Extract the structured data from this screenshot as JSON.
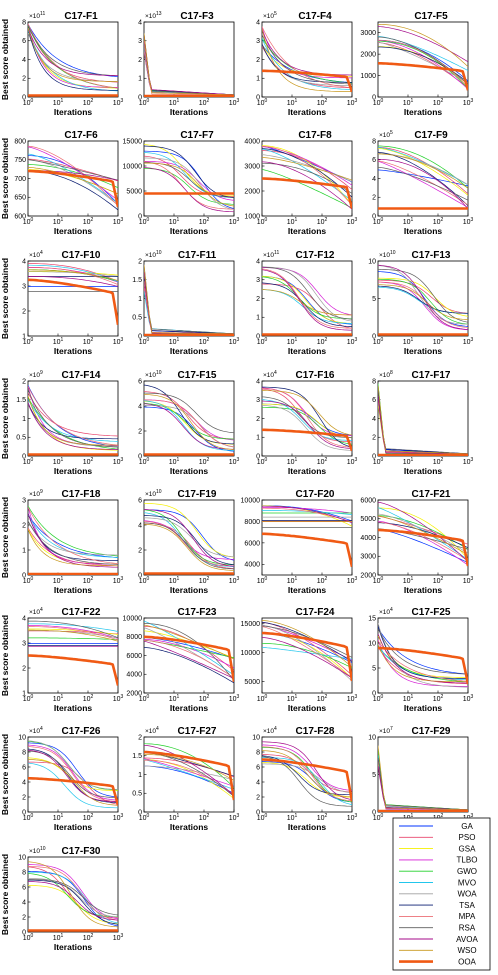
{
  "legend": {
    "entries": [
      {
        "name": "GA",
        "color": "#0033ff"
      },
      {
        "name": "PSO",
        "color": "#e8466e"
      },
      {
        "name": "GSA",
        "color": "#f4f000"
      },
      {
        "name": "TLBO",
        "color": "#d61ed6"
      },
      {
        "name": "GWO",
        "color": "#22d02a"
      },
      {
        "name": "MVO",
        "color": "#22c6ec"
      },
      {
        "name": "WOA",
        "color": "#a0a0a0"
      },
      {
        "name": "TSA",
        "color": "#0a1c70"
      },
      {
        "name": "MPA",
        "color": "#ec6e74"
      },
      {
        "name": "RSA",
        "color": "#5e5e5e"
      },
      {
        "name": "AVOA",
        "color": "#a40a8a"
      },
      {
        "name": "WSO",
        "color": "#c8981e"
      },
      {
        "name": "OOA",
        "color": "#f05a14"
      }
    ]
  },
  "chart_data": [
    {
      "type": "line",
      "title": "C17-F1",
      "xlabel": "Iterations",
      "ylabel": "Best score obtained",
      "xscale": "log",
      "xlim": [
        1,
        1000
      ],
      "ylim": [
        0,
        8
      ],
      "yticks": [
        0,
        2,
        4,
        6,
        8
      ],
      "y_multiplier": "×10",
      "y_exponent": "11",
      "shape": "fast",
      "spread": 0.35,
      "ooa_level": 0.02
    },
    {
      "type": "line",
      "title": "C17-F3",
      "xlabel": "Iterations",
      "ylabel": "",
      "xscale": "log",
      "xlim": [
        1,
        1000
      ],
      "ylim": [
        0,
        4
      ],
      "yticks": [
        0,
        1,
        2,
        3,
        4
      ],
      "y_multiplier": "×10",
      "y_exponent": "13",
      "shape": "spike",
      "spread": 0.9,
      "ooa_level": 0.0
    },
    {
      "type": "line",
      "title": "C17-F4",
      "xlabel": "Iterations",
      "ylabel": "",
      "xscale": "log",
      "xlim": [
        1,
        1000
      ],
      "ylim": [
        0,
        4
      ],
      "yticks": [
        0,
        1,
        2,
        3,
        4
      ],
      "y_multiplier": "×10",
      "y_exponent": "5",
      "shape": "fast",
      "spread": 0.85,
      "ooa_level": 0.35
    },
    {
      "type": "line",
      "title": "C17-F5",
      "xlabel": "Iterations",
      "ylabel": "",
      "xscale": "log",
      "xlim": [
        1,
        1000
      ],
      "ylim": [
        0,
        3500
      ],
      "yticks": [
        0,
        1000,
        2000,
        3000
      ],
      "y_multiplier": "",
      "y_exponent": "",
      "shape": "slow",
      "spread": 0.85,
      "ooa_level": 0.45
    },
    {
      "type": "line",
      "title": "C17-F6",
      "xlabel": "Iterations",
      "ylabel": "Best score obtained",
      "xscale": "log",
      "xlim": [
        1,
        1000
      ],
      "ylim": [
        600,
        800
      ],
      "yticks": [
        600,
        650,
        700,
        750,
        800
      ],
      "y_multiplier": "",
      "y_exponent": "",
      "shape": "slow",
      "spread": 0.9,
      "ooa_level": 0.6
    },
    {
      "type": "line",
      "title": "C17-F7",
      "xlabel": "Iterations",
      "ylabel": "",
      "xscale": "log",
      "xlim": [
        1,
        1000
      ],
      "ylim": [
        0,
        15000
      ],
      "yticks": [
        0,
        5000,
        10000,
        15000
      ],
      "y_multiplier": "",
      "y_exponent": "",
      "shape": "med",
      "spread": 0.9,
      "ooa_level": 0.3
    },
    {
      "type": "line",
      "title": "C17-F8",
      "xlabel": "Iterations",
      "ylabel": "",
      "xscale": "log",
      "xlim": [
        1,
        1000
      ],
      "ylim": [
        1000,
        4000
      ],
      "yticks": [
        1000,
        2000,
        3000,
        4000
      ],
      "y_multiplier": "",
      "y_exponent": "",
      "shape": "slow",
      "spread": 0.85,
      "ooa_level": 0.5
    },
    {
      "type": "line",
      "title": "C17-F9",
      "xlabel": "Iterations",
      "ylabel": "",
      "xscale": "log",
      "xlim": [
        1,
        1000
      ],
      "ylim": [
        0,
        8
      ],
      "yticks": [
        0,
        2,
        4,
        6,
        8
      ],
      "y_multiplier": "×10",
      "y_exponent": "5",
      "shape": "slow",
      "spread": 0.9,
      "ooa_level": 0.1
    },
    {
      "type": "line",
      "title": "C17-F10",
      "xlabel": "Iterations",
      "ylabel": "Best score obtained",
      "xscale": "log",
      "xlim": [
        1,
        1000
      ],
      "ylim": [
        1,
        4
      ],
      "yticks": [
        1,
        2,
        3,
        4
      ],
      "y_multiplier": "×10",
      "y_exponent": "4",
      "shape": "flat",
      "spread": 0.95,
      "ooa_level": 0.75
    },
    {
      "type": "line",
      "title": "C17-F11",
      "xlabel": "Iterations",
      "ylabel": "",
      "xscale": "log",
      "xlim": [
        1,
        1000
      ],
      "ylim": [
        0,
        2
      ],
      "yticks": [
        0,
        0.5,
        1,
        1.5,
        2
      ],
      "y_multiplier": "×10",
      "y_exponent": "10",
      "shape": "spike",
      "spread": 0.9,
      "ooa_level": 0.0
    },
    {
      "type": "line",
      "title": "C17-F12",
      "xlabel": "Iterations",
      "ylabel": "",
      "xscale": "log",
      "xlim": [
        1,
        1000
      ],
      "ylim": [
        0,
        4
      ],
      "yticks": [
        0,
        1,
        2,
        3,
        4
      ],
      "y_multiplier": "×10",
      "y_exponent": "11",
      "shape": "med",
      "spread": 0.9,
      "ooa_level": 0.02
    },
    {
      "type": "line",
      "title": "C17-F13",
      "xlabel": "Iterations",
      "ylabel": "",
      "xscale": "log",
      "xlim": [
        1,
        1000
      ],
      "ylim": [
        0,
        10
      ],
      "yticks": [
        0,
        5,
        10
      ],
      "y_multiplier": "×10",
      "y_exponent": "10",
      "shape": "med",
      "spread": 0.9,
      "ooa_level": 0.02
    },
    {
      "type": "line",
      "title": "C17-F14",
      "xlabel": "Iterations",
      "ylabel": "Best score obtained",
      "xscale": "log",
      "xlim": [
        1,
        1000
      ],
      "ylim": [
        0,
        2
      ],
      "yticks": [
        0,
        0.5,
        1,
        1.5,
        2
      ],
      "y_multiplier": "×10",
      "y_exponent": "9",
      "shape": "fast",
      "spread": 0.7,
      "ooa_level": 0.02
    },
    {
      "type": "line",
      "title": "C17-F15",
      "xlabel": "Iterations",
      "ylabel": "",
      "xscale": "log",
      "xlim": [
        1,
        1000
      ],
      "ylim": [
        0,
        6
      ],
      "yticks": [
        0,
        2,
        4,
        6
      ],
      "y_multiplier": "×10",
      "y_exponent": "10",
      "shape": "med",
      "spread": 0.8,
      "ooa_level": 0.02
    },
    {
      "type": "line",
      "title": "C17-F16",
      "xlabel": "Iterations",
      "ylabel": "",
      "xscale": "log",
      "xlim": [
        1,
        1000
      ],
      "ylim": [
        0,
        4
      ],
      "yticks": [
        0,
        1,
        2,
        3,
        4
      ],
      "y_multiplier": "×10",
      "y_exponent": "4",
      "shape": "med",
      "spread": 0.85,
      "ooa_level": 0.35
    },
    {
      "type": "line",
      "title": "C17-F17",
      "xlabel": "Iterations",
      "ylabel": "",
      "xscale": "log",
      "xlim": [
        1,
        1000
      ],
      "ylim": [
        0,
        8
      ],
      "yticks": [
        0,
        2,
        4,
        6,
        8
      ],
      "y_multiplier": "×10",
      "y_exponent": "8",
      "shape": "spike",
      "spread": 0.8,
      "ooa_level": 0.01
    },
    {
      "type": "line",
      "title": "C17-F18",
      "xlabel": "Iterations",
      "ylabel": "Best score obtained",
      "xscale": "log",
      "xlim": [
        1,
        1000
      ],
      "ylim": [
        0,
        3
      ],
      "yticks": [
        0,
        1,
        2,
        3
      ],
      "y_multiplier": "×10",
      "y_exponent": "9",
      "shape": "fast",
      "spread": 0.9,
      "ooa_level": 0.01
    },
    {
      "type": "line",
      "title": "C17-F19",
      "xlabel": "Iterations",
      "ylabel": "",
      "xscale": "log",
      "xlim": [
        1,
        1000
      ],
      "ylim": [
        0,
        6
      ],
      "yticks": [
        0,
        2,
        4,
        6
      ],
      "y_multiplier": "×10",
      "y_exponent": "10",
      "shape": "med",
      "spread": 0.85,
      "ooa_level": 0.02
    },
    {
      "type": "line",
      "title": "C17-F20",
      "xlabel": "Iterations",
      "ylabel": "",
      "xscale": "log",
      "xlim": [
        1,
        1000
      ],
      "ylim": [
        3000,
        10000
      ],
      "yticks": [
        4000,
        6000,
        8000,
        10000
      ],
      "y_multiplier": "",
      "y_exponent": "",
      "shape": "flat",
      "spread": 0.95,
      "ooa_level": 0.55
    },
    {
      "type": "line",
      "title": "C17-F21",
      "xlabel": "Iterations",
      "ylabel": "",
      "xscale": "log",
      "xlim": [
        1,
        1000
      ],
      "ylim": [
        2000,
        6000
      ],
      "yticks": [
        2000,
        3000,
        4000,
        5000,
        6000
      ],
      "y_multiplier": "",
      "y_exponent": "",
      "shape": "slow",
      "spread": 0.9,
      "ooa_level": 0.6
    },
    {
      "type": "line",
      "title": "C17-F22",
      "xlabel": "Iterations",
      "ylabel": "Best score obtained",
      "xscale": "log",
      "xlim": [
        1,
        1000
      ],
      "ylim": [
        1,
        4
      ],
      "yticks": [
        1,
        2,
        3,
        4
      ],
      "y_multiplier": "×10",
      "y_exponent": "4",
      "shape": "flat",
      "spread": 0.95,
      "ooa_level": 0.5
    },
    {
      "type": "line",
      "title": "C17-F23",
      "xlabel": "Iterations",
      "ylabel": "",
      "xscale": "log",
      "xlim": [
        1,
        1000
      ],
      "ylim": [
        2000,
        10000
      ],
      "yticks": [
        2000,
        4000,
        6000,
        8000,
        10000
      ],
      "y_multiplier": "",
      "y_exponent": "",
      "shape": "slow",
      "spread": 0.9,
      "ooa_level": 0.75
    },
    {
      "type": "line",
      "title": "C17-F24",
      "xlabel": "Iterations",
      "ylabel": "",
      "xscale": "log",
      "xlim": [
        1,
        1000
      ],
      "ylim": [
        3000,
        16000
      ],
      "yticks": [
        5000,
        10000,
        15000
      ],
      "y_multiplier": "",
      "y_exponent": "",
      "shape": "slow",
      "spread": 0.9,
      "ooa_level": 0.8
    },
    {
      "type": "line",
      "title": "C17-F25",
      "xlabel": "Iterations",
      "ylabel": "",
      "xscale": "log",
      "xlim": [
        1,
        1000
      ],
      "ylim": [
        0,
        15
      ],
      "yticks": [
        0,
        5,
        10,
        15
      ],
      "y_multiplier": "×10",
      "y_exponent": "4",
      "shape": "fast",
      "spread": 0.9,
      "ooa_level": 0.6
    },
    {
      "type": "line",
      "title": "C17-F26",
      "xlabel": "Iterations",
      "ylabel": "Best score obtained",
      "xscale": "log",
      "xlim": [
        1,
        1000
      ],
      "ylim": [
        0,
        10
      ],
      "yticks": [
        0,
        2,
        4,
        6,
        8,
        10
      ],
      "y_multiplier": "×10",
      "y_exponent": "4",
      "shape": "med",
      "spread": 0.9,
      "ooa_level": 0.45
    },
    {
      "type": "line",
      "title": "C17-F27",
      "xlabel": "Iterations",
      "ylabel": "",
      "xscale": "log",
      "xlim": [
        1,
        1000
      ],
      "ylim": [
        0,
        2
      ],
      "yticks": [
        0,
        0.5,
        1,
        1.5,
        2
      ],
      "y_multiplier": "×10",
      "y_exponent": "4",
      "shape": "slow",
      "spread": 0.9,
      "ooa_level": 0.8
    },
    {
      "type": "line",
      "title": "C17-F28",
      "xlabel": "Iterations",
      "ylabel": "",
      "xscale": "log",
      "xlim": [
        1,
        1000
      ],
      "ylim": [
        0,
        10
      ],
      "yticks": [
        0,
        2,
        4,
        6,
        8,
        10
      ],
      "y_multiplier": "×10",
      "y_exponent": "4",
      "shape": "med",
      "spread": 0.9,
      "ooa_level": 0.7
    },
    {
      "type": "line",
      "title": "C17-F29",
      "xlabel": "Iterations",
      "ylabel": "",
      "xscale": "log",
      "xlim": [
        1,
        1000
      ],
      "ylim": [
        0,
        10
      ],
      "yticks": [
        0,
        5,
        10
      ],
      "y_multiplier": "×10",
      "y_exponent": "7",
      "shape": "spike",
      "spread": 0.9,
      "ooa_level": 0.01
    },
    {
      "type": "line",
      "title": "C17-F30",
      "xlabel": "Iterations",
      "ylabel": "Best score obtained",
      "xscale": "log",
      "xlim": [
        1,
        1000
      ],
      "ylim": [
        0,
        10
      ],
      "yticks": [
        0,
        2,
        4,
        6,
        8,
        10
      ],
      "y_multiplier": "×10",
      "y_exponent": "10",
      "shape": "med",
      "spread": 0.85,
      "ooa_level": 0.02
    }
  ]
}
